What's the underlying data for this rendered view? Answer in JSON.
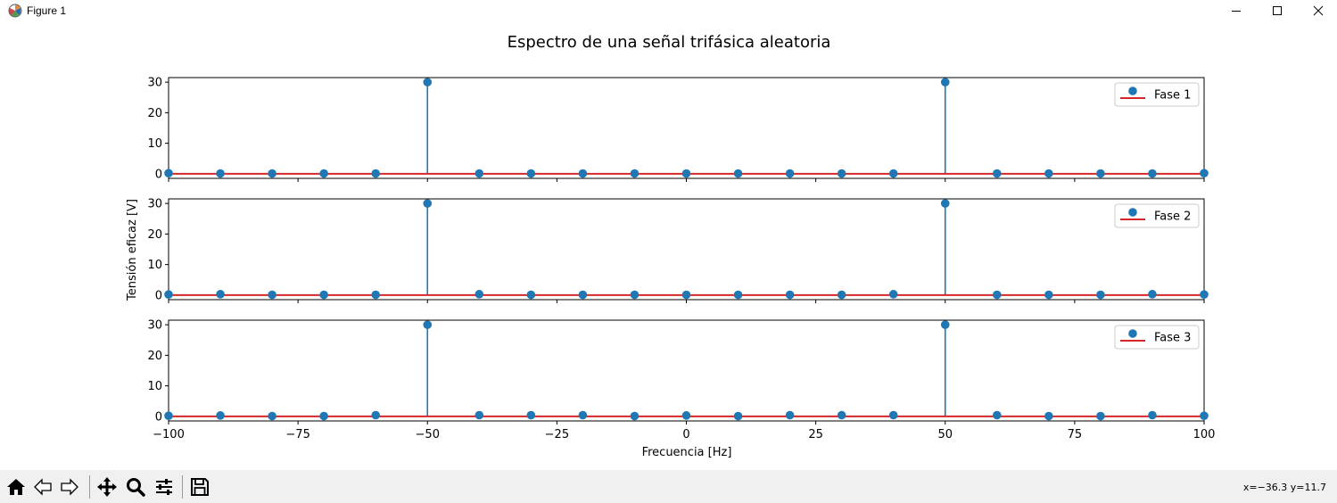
{
  "window": {
    "title": "Figure 1"
  },
  "toolbar": {
    "tools": [
      "home-icon",
      "back-arrow-icon",
      "forward-arrow-icon",
      "pan-move-icon",
      "zoom-magnifier-icon",
      "configure-subplots-icon",
      "save-floppy-icon"
    ],
    "coords": "x=−36.3 y=11.7"
  },
  "chart_data": {
    "type": "stem",
    "title": "Espectro de una señal trifásica aleatoria",
    "xlabel": "Frecuencia [Hz]",
    "ylabel": "Tensión eficaz [V]",
    "xlim": [
      -100,
      100
    ],
    "ylim": [
      -1.5,
      31.5
    ],
    "x_ticks": [
      -100,
      -75,
      -50,
      -25,
      0,
      25,
      50,
      75,
      100
    ],
    "x_tick_labels": [
      "−100",
      "−75",
      "−50",
      "−25",
      "0",
      "25",
      "50",
      "75",
      "100"
    ],
    "y_ticks": [
      0,
      10,
      20,
      30
    ],
    "y_tick_labels": [
      "0",
      "10",
      "20",
      "30"
    ],
    "x": [
      -100,
      -90,
      -80,
      -70,
      -60,
      -50,
      -40,
      -30,
      -20,
      -10,
      0,
      10,
      20,
      30,
      40,
      50,
      60,
      70,
      80,
      90,
      100
    ],
    "colors": {
      "markers": "#1f77b4",
      "baseline": "#d62728"
    },
    "legend_position": "upper right",
    "subplots": [
      {
        "name": "Fase 1",
        "values": [
          0.2,
          0.1,
          0.1,
          0.1,
          0.1,
          30,
          0.1,
          0.1,
          0.1,
          0.1,
          0.1,
          0.1,
          0.1,
          0.1,
          0.1,
          30,
          0.1,
          0.1,
          0.1,
          0.1,
          0.2
        ]
      },
      {
        "name": "Fase 2",
        "values": [
          0.2,
          0.3,
          0.1,
          0.1,
          0.1,
          30,
          0.3,
          0.1,
          0.1,
          0.1,
          0.1,
          0.1,
          0.1,
          0.1,
          0.3,
          30,
          0.1,
          0.1,
          0.1,
          0.3,
          0.2
        ]
      },
      {
        "name": "Fase 3",
        "values": [
          0.2,
          0.3,
          0.1,
          0.1,
          0.4,
          30,
          0.4,
          0.4,
          0.4,
          0.1,
          0.3,
          0.1,
          0.4,
          0.4,
          0.4,
          30,
          0.4,
          0.1,
          0.1,
          0.4,
          0.2
        ]
      }
    ]
  }
}
